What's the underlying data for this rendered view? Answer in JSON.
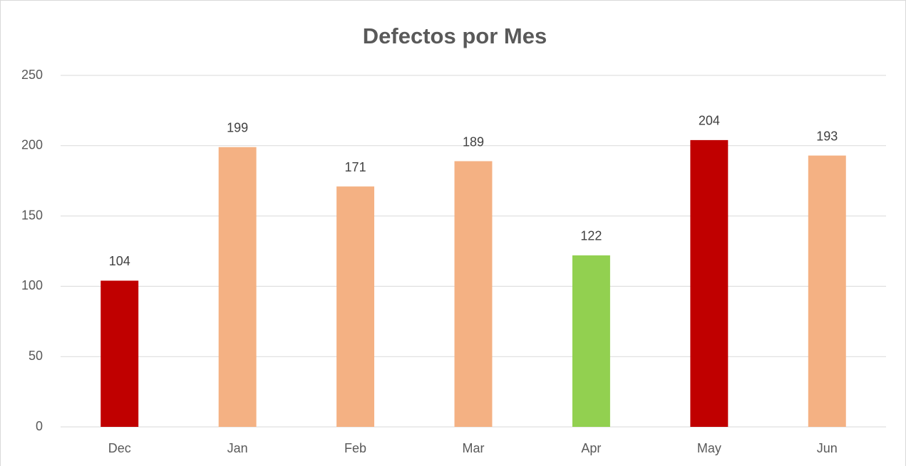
{
  "chart_data": {
    "type": "bar",
    "title": "Defectos por Mes",
    "categories": [
      "Dec",
      "Jan",
      "Feb",
      "Mar",
      "Apr",
      "May",
      "Jun"
    ],
    "values": [
      104,
      199,
      171,
      189,
      122,
      204,
      193
    ],
    "colors": [
      "#c00000",
      "#f4b183",
      "#f4b183",
      "#f4b183",
      "#92d050",
      "#c00000",
      "#f4b183"
    ],
    "ylim": [
      0,
      250
    ],
    "yticks": [
      0,
      50,
      100,
      150,
      200,
      250
    ],
    "grid": true
  }
}
